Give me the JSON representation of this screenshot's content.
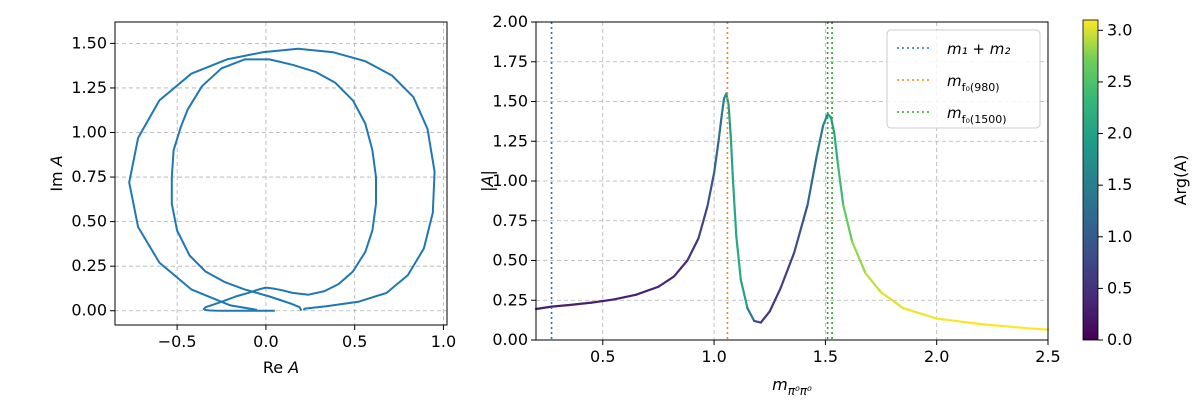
{
  "chart_data": [
    {
      "type": "line",
      "xlabel": "Re A",
      "ylabel": "Im A",
      "xlim": [
        -0.85,
        1.02
      ],
      "ylim": [
        -0.08,
        1.62
      ],
      "xticks": [
        -0.5,
        0.0,
        0.5,
        1.0
      ],
      "xtick_labels": [
        "−0.5",
        "0.0",
        "0.5",
        "1.0"
      ],
      "yticks": [
        0.0,
        0.25,
        0.5,
        0.75,
        1.0,
        1.25,
        1.5
      ],
      "ytick_labels": [
        "0.00",
        "0.25",
        "0.50",
        "0.75",
        "1.00",
        "1.25",
        "1.50"
      ],
      "grid": true,
      "color": "#1f77b4",
      "series": [
        {
          "x": [
            -0.05,
            -0.2,
            -0.42,
            -0.6,
            -0.72,
            -0.77,
            -0.72,
            -0.6,
            -0.42,
            -0.22,
            -0.02,
            0.18,
            0.38,
            0.56,
            0.71,
            0.83,
            0.91,
            0.95,
            0.94,
            0.89,
            0.8,
            0.68,
            0.52,
            0.34,
            0.22,
            0.21
          ],
          "y": [
            0.005,
            0.03,
            0.12,
            0.27,
            0.47,
            0.72,
            0.97,
            1.18,
            1.33,
            1.41,
            1.45,
            1.47,
            1.45,
            1.4,
            1.32,
            1.2,
            1.02,
            0.78,
            0.55,
            0.35,
            0.2,
            0.1,
            0.05,
            0.025,
            0.012,
            0.005
          ]
        },
        {
          "x": [
            0.2,
            0.19,
            0.14,
            0.08,
            0.02,
            -0.05,
            -0.12,
            -0.23,
            -0.34,
            -0.43,
            -0.5,
            -0.53,
            -0.53,
            -0.52,
            -0.48,
            -0.44,
            -0.36,
            -0.25,
            -0.12,
            0.02,
            0.15,
            0.28,
            0.39,
            0.49,
            0.56,
            0.6,
            0.62,
            0.62,
            0.6,
            0.56,
            0.49,
            0.41,
            0.33,
            0.24,
            0.15,
            0.09,
            0.04,
            0.0,
            -0.04,
            -0.1,
            -0.17,
            -0.25,
            -0.31,
            -0.34,
            -0.35,
            -0.34,
            -0.32,
            -0.29,
            -0.25,
            -0.2,
            -0.14,
            -0.07,
            0.0,
            0.05
          ],
          "y": [
            0.0,
            0.02,
            0.04,
            0.06,
            0.08,
            0.1,
            0.12,
            0.16,
            0.22,
            0.31,
            0.45,
            0.6,
            0.75,
            0.9,
            1.03,
            1.13,
            1.26,
            1.36,
            1.41,
            1.41,
            1.38,
            1.34,
            1.28,
            1.18,
            1.05,
            0.9,
            0.75,
            0.6,
            0.45,
            0.33,
            0.22,
            0.15,
            0.11,
            0.09,
            0.1,
            0.115,
            0.125,
            0.13,
            0.12,
            0.1,
            0.08,
            0.05,
            0.03,
            0.02,
            0.01,
            0.004,
            0.002,
            0.001,
            0.0,
            0.0,
            0.0,
            0.0,
            0.0,
            0.0
          ]
        }
      ]
    },
    {
      "type": "line",
      "xlabel": "m_π⁰π⁰",
      "ylabel": "|A|",
      "xlim": [
        0.2,
        2.5
      ],
      "ylim": [
        0.0,
        2.0
      ],
      "xticks": [
        0.5,
        1.0,
        1.5,
        2.0,
        2.5
      ],
      "xtick_labels": [
        "0.5",
        "1.0",
        "1.5",
        "2.0",
        "2.5"
      ],
      "yticks": [
        0.0,
        0.25,
        0.5,
        0.75,
        1.0,
        1.25,
        1.5,
        1.75,
        2.0
      ],
      "ytick_labels": [
        "0.00",
        "0.25",
        "0.50",
        "0.75",
        "1.00",
        "1.25",
        "1.50",
        "1.75",
        "2.00"
      ],
      "grid": true,
      "color_by": "Arg(A)",
      "colorscale": "viridis",
      "series": [
        {
          "x": [
            0.2,
            0.27,
            0.35,
            0.45,
            0.55,
            0.65,
            0.75,
            0.82,
            0.88,
            0.93,
            0.97,
            1.0,
            1.02,
            1.035,
            1.045,
            1.055,
            1.065,
            1.075,
            1.085,
            1.1,
            1.12,
            1.15,
            1.18,
            1.21,
            1.25,
            1.3,
            1.36,
            1.42,
            1.46,
            1.49,
            1.51,
            1.525,
            1.54,
            1.555,
            1.58,
            1.62,
            1.68,
            1.75,
            1.85,
            2.0,
            2.2,
            2.4,
            2.5
          ],
          "y": [
            0.195,
            0.21,
            0.22,
            0.235,
            0.255,
            0.285,
            0.335,
            0.4,
            0.5,
            0.64,
            0.84,
            1.05,
            1.25,
            1.42,
            1.52,
            1.55,
            1.48,
            1.28,
            1.0,
            0.65,
            0.38,
            0.2,
            0.12,
            0.11,
            0.18,
            0.33,
            0.55,
            0.85,
            1.15,
            1.35,
            1.42,
            1.4,
            1.3,
            1.12,
            0.85,
            0.62,
            0.42,
            0.3,
            0.2,
            0.135,
            0.1,
            0.075,
            0.065
          ],
          "arg": [
            0.3,
            0.3,
            0.3,
            0.31,
            0.32,
            0.33,
            0.35,
            0.38,
            0.45,
            0.6,
            0.8,
            1.0,
            1.2,
            1.4,
            1.6,
            1.75,
            1.9,
            2.0,
            2.08,
            2.12,
            2.1,
            1.9,
            1.0,
            0.6,
            0.55,
            0.6,
            0.75,
            1.0,
            1.3,
            1.55,
            1.75,
            1.9,
            2.05,
            2.25,
            2.5,
            2.75,
            2.9,
            3.0,
            3.05,
            3.08,
            3.1,
            3.1,
            3.1
          ]
        }
      ],
      "vlines": [
        {
          "x": 0.27,
          "label": "m₁ + m₂",
          "color": "#1f77b4"
        },
        {
          "x": 1.06,
          "label": "m_f₀(980)",
          "color": "#ff7f0e"
        },
        {
          "x": 1.51,
          "label": "m_f₀(1500)",
          "color": "#2ca02c"
        }
      ],
      "vline_extra": [
        {
          "x": 1.53,
          "color": "#2ca02c"
        }
      ],
      "legend_position": "top-right",
      "colorbar": {
        "label": "Arg(A)",
        "range": [
          0.0,
          3.1
        ],
        "ticks": [
          0.0,
          0.5,
          1.0,
          1.5,
          2.0,
          2.5,
          3.0
        ],
        "tick_labels": [
          "0.0",
          "0.5",
          "1.0",
          "1.5",
          "2.0",
          "2.5",
          "3.0"
        ]
      }
    }
  ]
}
